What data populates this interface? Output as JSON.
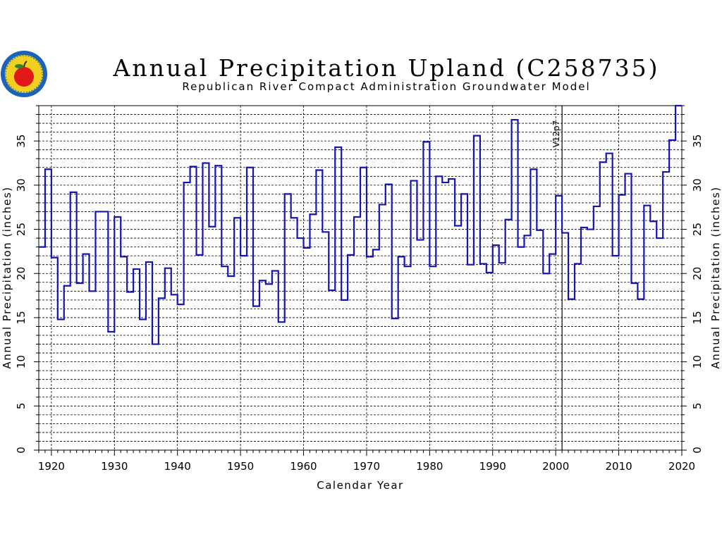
{
  "chart_data": {
    "type": "line",
    "step": true,
    "title": "Annual Precipitation Upland (C258735)",
    "subtitle": "Republican River Compact Administration Groundwater Model",
    "xlabel": "Calendar Year",
    "ylabel_left": "Annual Precipitation (inches)",
    "ylabel_right": "Annual Precipitation (inches)",
    "xlim": [
      1918,
      2020
    ],
    "ylim": [
      0,
      39
    ],
    "x_ticks": [
      1920,
      1930,
      1940,
      1950,
      1960,
      1970,
      1980,
      1990,
      2000,
      2010,
      2020
    ],
    "y_ticks": [
      0,
      5,
      10,
      15,
      20,
      25,
      30,
      35
    ],
    "grid": true,
    "vertical_marker": {
      "x": 2001,
      "label": "V12p7"
    },
    "series": [
      {
        "color": "#1414b4",
        "x": [
          1918,
          1919,
          1920,
          1921,
          1922,
          1923,
          1924,
          1925,
          1926,
          1927,
          1928,
          1929,
          1930,
          1931,
          1932,
          1933,
          1934,
          1935,
          1936,
          1937,
          1938,
          1939,
          1940,
          1941,
          1942,
          1943,
          1944,
          1945,
          1946,
          1947,
          1948,
          1949,
          1950,
          1951,
          1952,
          1953,
          1954,
          1955,
          1956,
          1957,
          1958,
          1959,
          1960,
          1961,
          1962,
          1963,
          1964,
          1965,
          1966,
          1967,
          1968,
          1969,
          1970,
          1971,
          1972,
          1973,
          1974,
          1975,
          1976,
          1977,
          1978,
          1979,
          1980,
          1981,
          1982,
          1983,
          1984,
          1985,
          1986,
          1987,
          1988,
          1989,
          1990,
          1991,
          1992,
          1993,
          1994,
          1995,
          1996,
          1997,
          1998,
          1999,
          2000,
          2001,
          2002,
          2003,
          2004,
          2005,
          2006,
          2007,
          2008,
          2009,
          2010,
          2011,
          2012,
          2013,
          2014,
          2015,
          2016,
          2017,
          2018,
          2019
        ],
        "y": [
          23.0,
          31.8,
          21.8,
          14.8,
          18.6,
          29.2,
          18.9,
          22.2,
          18.0,
          27.0,
          27.0,
          13.4,
          26.4,
          21.9,
          17.9,
          20.5,
          14.8,
          21.3,
          12.0,
          17.2,
          20.6,
          17.6,
          16.5,
          30.3,
          32.1,
          22.1,
          32.5,
          25.3,
          32.2,
          20.8,
          19.7,
          26.3,
          22.0,
          32.0,
          16.3,
          19.2,
          18.8,
          20.3,
          14.5,
          29.0,
          26.3,
          24.0,
          22.9,
          26.7,
          31.7,
          24.7,
          18.1,
          34.3,
          17.0,
          22.1,
          26.4,
          32.0,
          21.9,
          22.7,
          27.8,
          30.1,
          14.9,
          21.9,
          20.8,
          30.5,
          23.8,
          34.9,
          20.8,
          31.0,
          30.3,
          30.7,
          25.4,
          29.0,
          21.0,
          35.6,
          21.1,
          20.1,
          23.2,
          21.2,
          26.1,
          37.4,
          23.0,
          24.3,
          31.8,
          24.9,
          20.0,
          22.2,
          28.8,
          24.6,
          17.1,
          21.1,
          25.2,
          25.0,
          27.6,
          32.6,
          33.6,
          22.0,
          28.9,
          31.3,
          18.9,
          17.1,
          27.7,
          25.9,
          24.0,
          31.5,
          35.1,
          39.0
        ]
      }
    ]
  }
}
